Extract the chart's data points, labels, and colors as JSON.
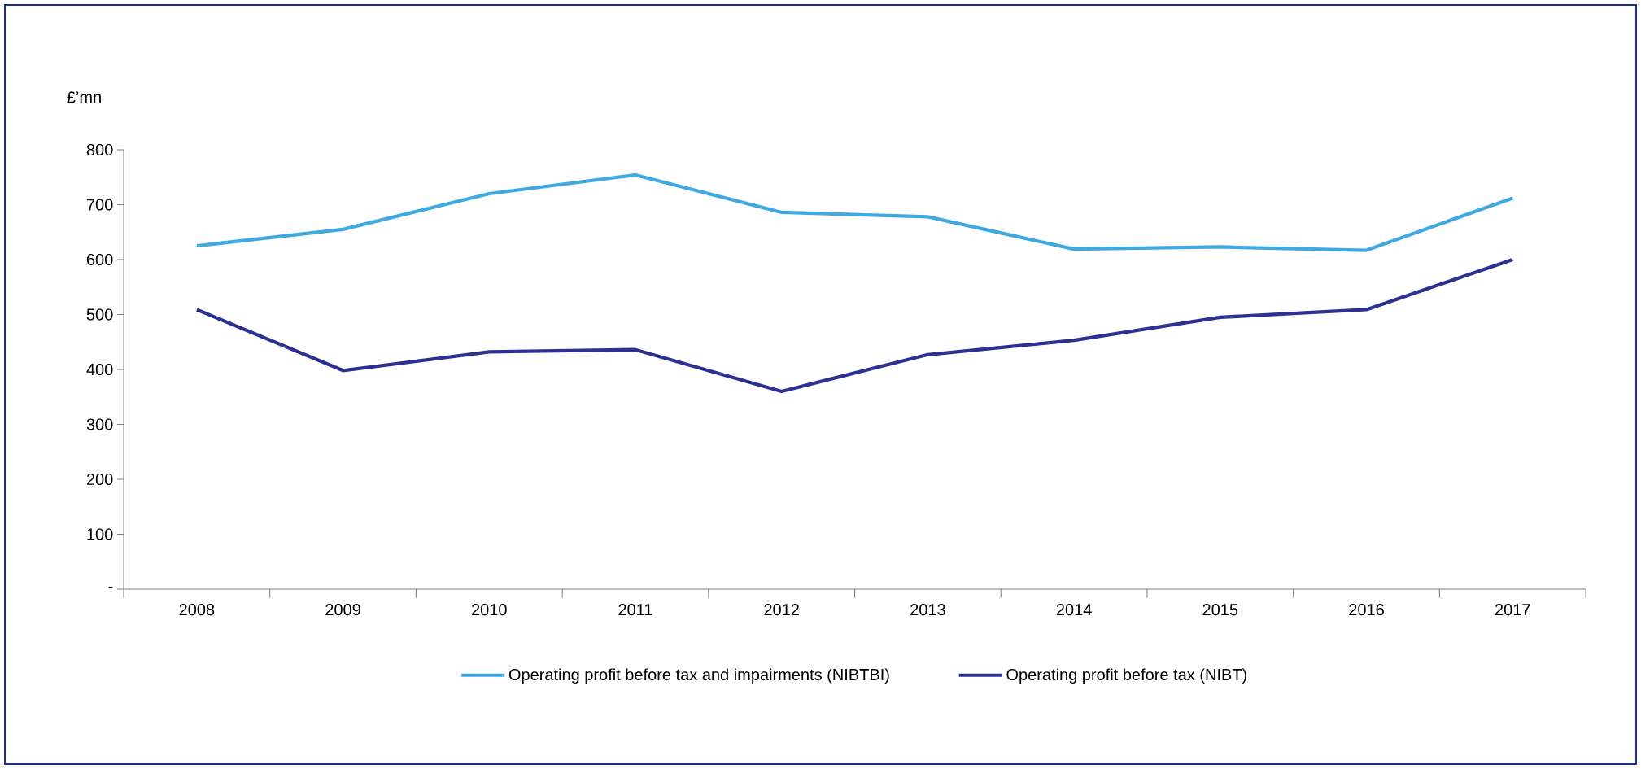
{
  "chart_data": {
    "type": "line",
    "ylabel": "£’mn",
    "categories": [
      "2008",
      "2009",
      "2010",
      "2011",
      "2012",
      "2013",
      "2014",
      "2015",
      "2016",
      "2017"
    ],
    "series": [
      {
        "name": "Operating profit before tax and impairments (NIBTBI)",
        "color": "#41a9e1",
        "values": [
          625,
          655,
          720,
          754,
          686,
          678,
          619,
          623,
          617,
          712
        ]
      },
      {
        "name": "Operating profit before tax (NIBT)",
        "color": "#2e3192",
        "values": [
          509,
          398,
          432,
          436,
          360,
          427,
          453,
          495,
          509,
          600
        ]
      }
    ],
    "ylim": [
      0,
      800
    ],
    "yticks": [
      {
        "value": 0,
        "label": "-"
      },
      100,
      200,
      300,
      400,
      500,
      600,
      700,
      800
    ],
    "grid": false,
    "legend": "bottom",
    "marker": "none",
    "line_style": "solid"
  }
}
